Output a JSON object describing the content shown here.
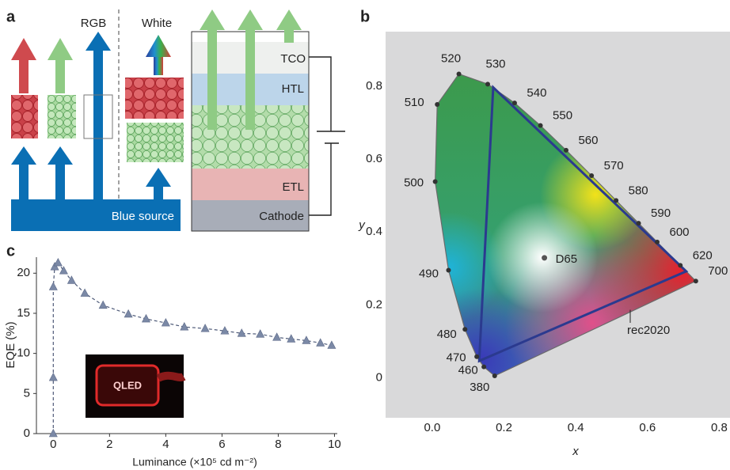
{
  "diagram": {
    "panel_label": "a",
    "column_labels": [
      "RGB",
      "White"
    ],
    "source_label": "Blue source",
    "layers": [
      "TCO",
      "HTL",
      "ETL",
      "Cathode"
    ]
  },
  "chart_data": [
    {
      "type": "chromaticity",
      "panel_label": "b",
      "xlabel": "x",
      "ylabel": "y",
      "xlim": [
        -0.13,
        0.83
      ],
      "ylim": [
        -0.11,
        0.95
      ],
      "xticks": [
        {
          "value": 0,
          "label": "0.0"
        },
        0.2,
        0.4,
        0.6,
        0.8
      ],
      "yticks": [
        0,
        0.2,
        0.4,
        0.6,
        0.8
      ],
      "point_labels": [
        "380",
        "460",
        "470",
        "480",
        "490",
        "500",
        "510",
        "520",
        "530",
        "540",
        "550",
        "560",
        "570",
        "580",
        "590",
        "600",
        "620",
        "700"
      ],
      "x": [
        0.1741,
        0.144,
        0.1241,
        0.0913,
        0.0454,
        0.0082,
        0.0139,
        0.0743,
        0.1547,
        0.2296,
        0.3016,
        0.3731,
        0.4441,
        0.5125,
        0.5752,
        0.627,
        0.6915,
        0.7347
      ],
      "y": [
        0.005,
        0.0297,
        0.0578,
        0.1327,
        0.295,
        0.5384,
        0.7502,
        0.8338,
        0.8059,
        0.7543,
        0.6923,
        0.6245,
        0.5547,
        0.4866,
        0.4242,
        0.3725,
        0.3083,
        0.2653
      ],
      "point_color": "#333333",
      "white_point": {
        "label": "D65",
        "x": 0.3127,
        "y": 0.329
      },
      "gamut": {
        "label": "rec2020",
        "x": [
          0.708,
          0.17,
          0.131
        ],
        "y": [
          0.292,
          0.797,
          0.046
        ],
        "color": "#2b3a8f"
      }
    },
    {
      "type": "line",
      "panel_label": "c",
      "xlabel": "Luminance (×10⁵ cd m⁻²)",
      "ylabel": "EQE (%)",
      "xlim": [
        -0.6,
        10.1
      ],
      "ylim": [
        0,
        22
      ],
      "xticks": [
        0,
        2,
        4,
        6,
        8,
        10
      ],
      "yticks": [
        0,
        5,
        10,
        15,
        20
      ],
      "x": [
        0,
        0,
        0,
        0.05,
        0.17,
        0.37,
        0.65,
        1.12,
        1.77,
        2.67,
        3.3,
        4.0,
        4.66,
        5.4,
        6.1,
        6.7,
        7.36,
        7.95,
        8.46,
        9.0,
        9.5,
        9.9
      ],
      "values": [
        0,
        7,
        18.3,
        20.8,
        21.3,
        20.3,
        19.1,
        17.5,
        16.0,
        14.9,
        14.3,
        13.8,
        13.3,
        13.1,
        12.8,
        12.5,
        12.4,
        12.0,
        11.8,
        11.6,
        11.3,
        11.0
      ],
      "color": "#7b89a6",
      "inset_text": "QLED"
    }
  ]
}
